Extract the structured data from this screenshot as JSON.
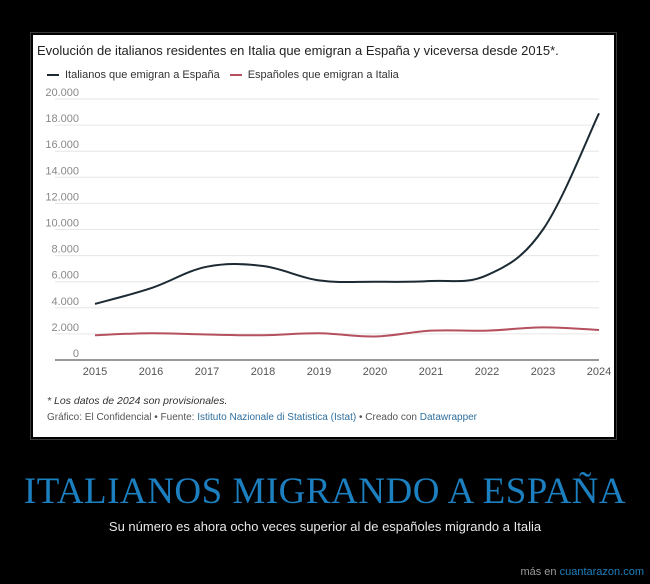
{
  "chart_data": {
    "type": "line",
    "title": "Evolución de italianos residentes en Italia que emigran a España y viceversa desde 2015*.",
    "x": [
      "2015",
      "2016",
      "2017",
      "2018",
      "2019",
      "2020",
      "2021",
      "2022",
      "2023",
      "2024"
    ],
    "series": [
      {
        "name": "Italianos que emigran a España",
        "color": "#1b2a33",
        "values": [
          4300,
          5500,
          7150,
          7200,
          6100,
          6000,
          6050,
          6500,
          10000,
          18900
        ]
      },
      {
        "name": "Españoles que emigran a Italia",
        "color": "#b5505e",
        "values": [
          1900,
          2050,
          1950,
          1900,
          2050,
          1800,
          2250,
          2250,
          2500,
          2300
        ]
      }
    ],
    "yticks": [
      "0",
      "2.000",
      "4.000",
      "6.000",
      "8.000",
      "10.000",
      "12.000",
      "14.000",
      "16.000",
      "18.000",
      "20.000"
    ],
    "ylim": [
      0,
      20000
    ],
    "grid": true,
    "legend": "top-left"
  },
  "note": "* Los datos de 2024 son provisionales.",
  "source": {
    "prefix": "Gráfico: El Confidencial • Fuente: ",
    "link1": "Istituto Nazionale di Statistica (Istat)",
    "middle": " • Creado con ",
    "link2": "Datawrapper"
  },
  "headline": "ITALIANOS MIGRANDO A ESPAÑA",
  "subheadline": "Su número es ahora ocho veces superior al de españoles migrando a Italia",
  "footer": {
    "prefix": "más en ",
    "site": "cuantarazon.com"
  }
}
